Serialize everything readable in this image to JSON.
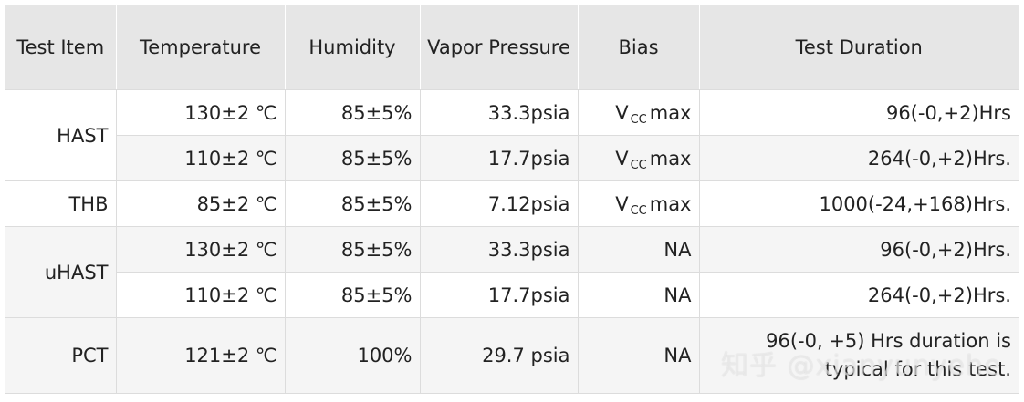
{
  "table": {
    "headers": {
      "test_item": "Test Item",
      "temperature": "Temperature",
      "humidity": "Humidity",
      "vapor_pressure": "Vapor Pressure",
      "bias": "Bias",
      "test_duration": "Test Duration"
    },
    "groups": {
      "hast": "HAST",
      "thb": "THB",
      "uhast": "uHAST",
      "pct": "PCT"
    },
    "rows": [
      {
        "temperature": "130±2 ℃",
        "humidity": "85±5%",
        "vapor_pressure": "33.3psia",
        "bias": {
          "v": "V",
          "sub": "CC",
          "rest": "max"
        },
        "duration": "96(-0,+2)Hrs"
      },
      {
        "temperature": "110±2 ℃",
        "humidity": "85±5%",
        "vapor_pressure": "17.7psia",
        "bias": {
          "v": "V",
          "sub": "CC",
          "rest": "max"
        },
        "duration": "264(-0,+2)Hrs."
      },
      {
        "temperature": "85±2 ℃",
        "humidity": "85±5%",
        "vapor_pressure": "7.12psia",
        "bias": {
          "v": "V",
          "sub": "CC",
          "rest": "max"
        },
        "duration": "1000(-24,+168)Hrs."
      },
      {
        "temperature": "130±2 ℃",
        "humidity": "85±5%",
        "vapor_pressure": "33.3psia",
        "bias": {
          "text": "NA"
        },
        "duration": "96(-0,+2)Hrs."
      },
      {
        "temperature": "110±2 ℃",
        "humidity": "85±5%",
        "vapor_pressure": "17.7psia",
        "bias": {
          "text": "NA"
        },
        "duration": "264(-0,+2)Hrs."
      },
      {
        "temperature": "121±2 ℃",
        "humidity": "100%",
        "vapor_pressure": "29.7 psia",
        "bias": {
          "text": "NA"
        },
        "duration": "96(-0, +5) Hrs duration is typical for this test."
      }
    ]
  },
  "watermark": "知乎 @xianyunyehe"
}
